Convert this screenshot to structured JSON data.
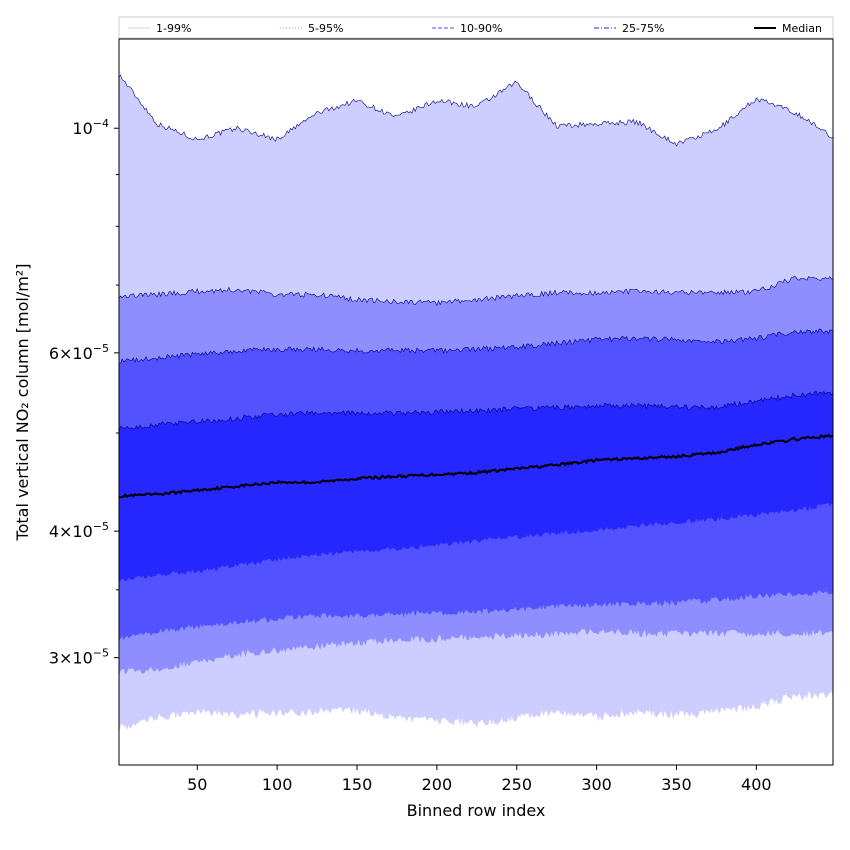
{
  "chart_data": {
    "type": "area",
    "xlabel": "Binned row index",
    "ylabel": "Total vertical NO₂ column [mol/m²]",
    "xlim": [
      1,
      448
    ],
    "ylim": [
      2.35e-05,
      0.0001225
    ],
    "yscale": "log",
    "x_ticks": [
      50,
      100,
      150,
      200,
      250,
      300,
      350,
      400
    ],
    "y_ticks": [
      {
        "value": 0.0001,
        "mantissa": "",
        "exponent": "−4",
        "base": "10"
      },
      {
        "value": 6e-05,
        "mantissa": "6",
        "exponent": "−5",
        "base": "10"
      },
      {
        "value": 4e-05,
        "mantissa": "4",
        "exponent": "−5",
        "base": "10"
      },
      {
        "value": 3e-05,
        "mantissa": "3",
        "exponent": "−5",
        "base": "10"
      }
    ],
    "x": [
      1,
      25,
      50,
      75,
      100,
      125,
      150,
      175,
      200,
      225,
      250,
      275,
      300,
      325,
      350,
      375,
      400,
      425,
      448
    ],
    "bands": [
      {
        "name": "1-99%",
        "color": "#cdcdff",
        "lower": [
          2.55e-05,
          2.62e-05,
          2.65e-05,
          2.63e-05,
          2.65e-05,
          2.65e-05,
          2.66e-05,
          2.62e-05,
          2.6e-05,
          2.58e-05,
          2.62e-05,
          2.65e-05,
          2.62e-05,
          2.65e-05,
          2.63e-05,
          2.65e-05,
          2.68e-05,
          2.75e-05,
          2.75e-05
        ],
        "upper": [
          0.000113,
          0.000101,
          9.75e-05,
          0.0001,
          9.75e-05,
          0.0001035,
          0.0001065,
          0.0001025,
          0.0001065,
          0.000105,
          0.000111,
          0.0001005,
          0.000101,
          0.0001015,
          9.65e-05,
          9.95e-05,
          0.000107,
          0.0001035,
          9.8e-05
        ]
      },
      {
        "name": "5-95%",
        "color": "#8e8eff",
        "lower": [
          2.9e-05,
          2.92e-05,
          2.97e-05,
          3.02e-05,
          3.05e-05,
          3.08e-05,
          3.1e-05,
          3.13e-05,
          3.13e-05,
          3.15e-05,
          3.15e-05,
          3.17e-05,
          3.18e-05,
          3.17e-05,
          3.17e-05,
          3.17e-05,
          3.17e-05,
          3.17e-05,
          3.18e-05
        ],
        "upper": [
          6.83e-05,
          6.85e-05,
          6.9e-05,
          6.93e-05,
          6.85e-05,
          6.85e-05,
          6.77e-05,
          6.74e-05,
          6.72e-05,
          6.77e-05,
          6.83e-05,
          6.88e-05,
          6.88e-05,
          6.9e-05,
          6.88e-05,
          6.88e-05,
          6.9e-05,
          7.12e-05,
          7.1e-05
        ]
      },
      {
        "name": "10-90%",
        "color": "#5252ff",
        "lower": [
          3.13e-05,
          3.18e-05,
          3.22e-05,
          3.25e-05,
          3.28e-05,
          3.3e-05,
          3.3e-05,
          3.31e-05,
          3.32e-05,
          3.33e-05,
          3.35e-05,
          3.37e-05,
          3.38e-05,
          3.39e-05,
          3.4e-05,
          3.42e-05,
          3.45e-05,
          3.47e-05,
          3.48e-05
        ],
        "upper": [
          5.88e-05,
          5.93e-05,
          5.98e-05,
          6.03e-05,
          6.05e-05,
          6.05e-05,
          6.03e-05,
          6.03e-05,
          6.03e-05,
          6.05e-05,
          6.08e-05,
          6.13e-05,
          6.18e-05,
          6.2e-05,
          6.18e-05,
          6.15e-05,
          6.2e-05,
          6.3e-05,
          6.3e-05
        ]
      },
      {
        "name": "25-75%",
        "color": "#2626ff",
        "lower": [
          3.58e-05,
          3.62e-05,
          3.65e-05,
          3.7e-05,
          3.75e-05,
          3.79e-05,
          3.82e-05,
          3.84e-05,
          3.87e-05,
          3.91e-05,
          3.95e-05,
          3.98e-05,
          4.01e-05,
          4.05e-05,
          4.08e-05,
          4.11e-05,
          4.15e-05,
          4.2e-05,
          4.25e-05
        ],
        "upper": [
          5.05e-05,
          5.1e-05,
          5.13e-05,
          5.17e-05,
          5.22e-05,
          5.23e-05,
          5.23e-05,
          5.23e-05,
          5.25e-05,
          5.26e-05,
          5.28e-05,
          5.3e-05,
          5.32e-05,
          5.32e-05,
          5.3e-05,
          5.3e-05,
          5.38e-05,
          5.45e-05,
          5.48e-05
        ]
      }
    ],
    "median": {
      "name": "Median",
      "color": "#000000",
      "values": [
        4.33e-05,
        4.35e-05,
        4.39e-05,
        4.43e-05,
        4.47e-05,
        4.47e-05,
        4.51e-05,
        4.53e-05,
        4.55e-05,
        4.57e-05,
        4.61e-05,
        4.65e-05,
        4.7e-05,
        4.72e-05,
        4.74e-05,
        4.78e-05,
        4.87e-05,
        4.93e-05,
        4.97e-05
      ]
    },
    "legend": {
      "position": "top",
      "entries": [
        {
          "label": "1-99%",
          "color": "#cdcdff",
          "style": "solid"
        },
        {
          "label": "5-95%",
          "color": "#8e8eff",
          "style": "dotted"
        },
        {
          "label": "10-90%",
          "color": "#5252ff",
          "style": "dashed"
        },
        {
          "label": "25-75%",
          "color": "#2626ff",
          "style": "dashdot"
        },
        {
          "label": "Median",
          "color": "#000000",
          "style": "solid-thick"
        }
      ]
    }
  }
}
